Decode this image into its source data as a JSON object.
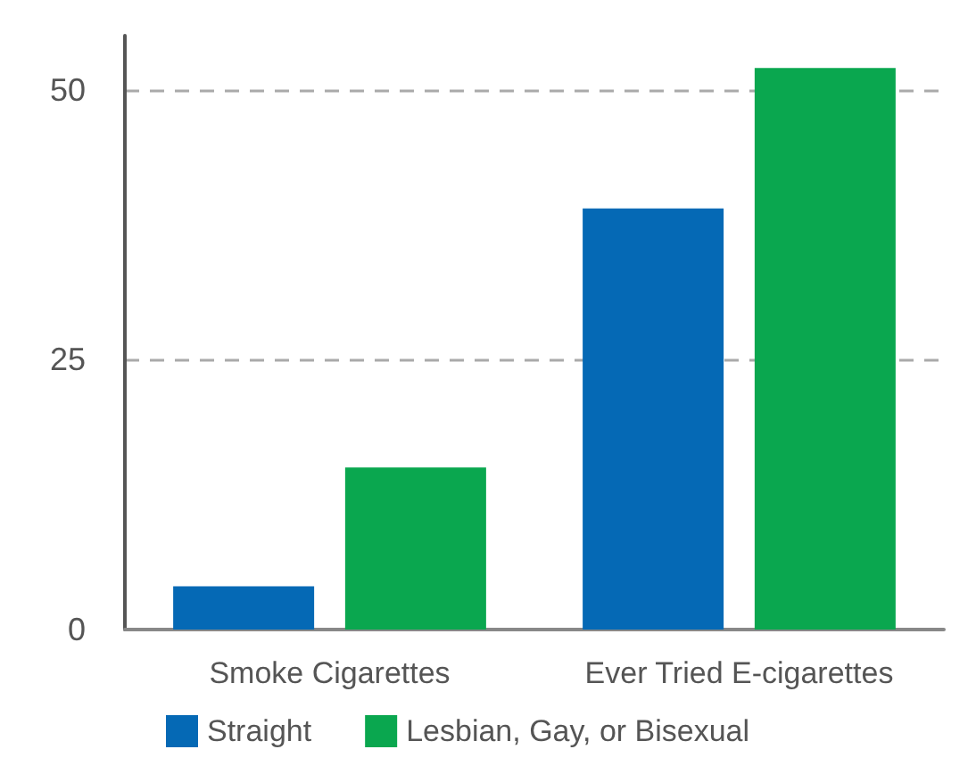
{
  "chart_data": {
    "type": "bar",
    "categories": [
      "Smoke Cigarettes",
      "Ever Tried E-cigarettes"
    ],
    "series": [
      {
        "name": "Straight",
        "color": "#0569b5",
        "values": [
          4,
          39
        ]
      },
      {
        "name": "Lesbian, Gay, or Bisexual",
        "color": "#0aa74f",
        "values": [
          15,
          52
        ]
      }
    ],
    "ylim": [
      0,
      55
    ],
    "yticks": [
      0,
      25,
      50
    ],
    "grid": "y",
    "legend": "bottom"
  }
}
